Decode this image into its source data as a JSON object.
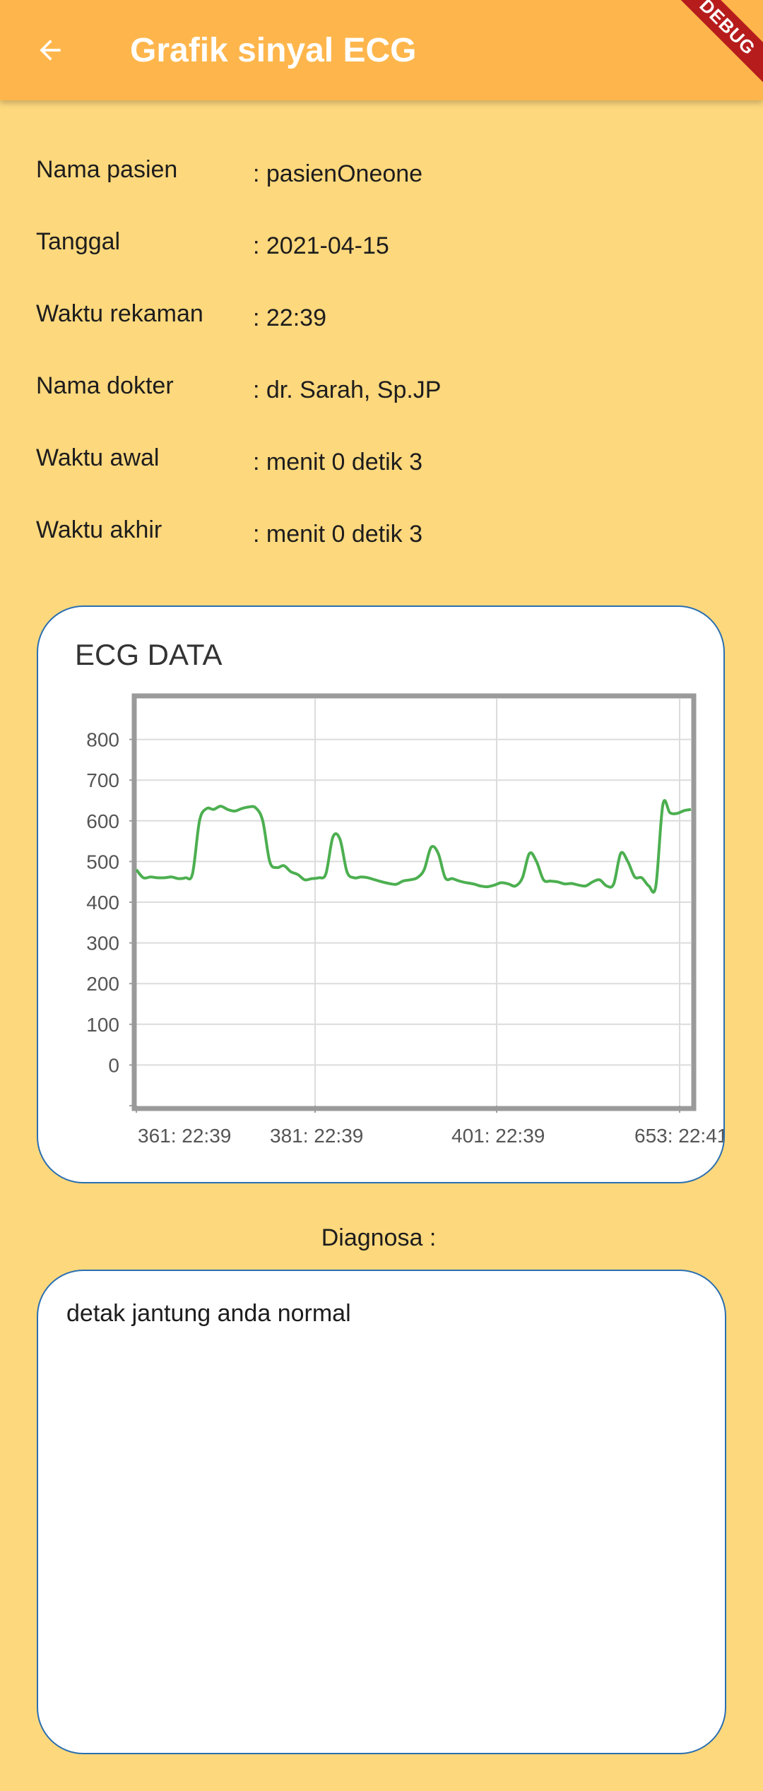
{
  "app_bar": {
    "title": "Grafik sinyal ECG",
    "back_icon": "arrow-back-icon",
    "debug_banner": "DEBUG",
    "background_color": "#FEB64C"
  },
  "patient_info": [
    {
      "label": "Nama pasien",
      "value": ": pasienOneone"
    },
    {
      "label": "Tanggal",
      "value": ": 2021-04-15"
    },
    {
      "label": "Waktu rekaman",
      "value": ": 22:39"
    },
    {
      "label": "Nama dokter",
      "value": ": dr. Sarah, Sp.JP"
    },
    {
      "label": "Waktu awal",
      "value": ": menit 0 detik 3"
    },
    {
      "label": "Waktu akhir",
      "value": ": menit 0 detik 3"
    }
  ],
  "chart_data": {
    "type": "line",
    "title": "ECG DATA",
    "xlabel": "",
    "ylabel": "",
    "ylim": [
      -100,
      900
    ],
    "y_ticks": [
      "800",
      "700",
      "600",
      "500",
      "400",
      "300",
      "200",
      "100",
      "0"
    ],
    "x_tick_labels": [
      "361: 22:39",
      "381: 22:39",
      "401: 22:39",
      "653: 22:41"
    ],
    "grid": true,
    "line_color": "#4CAF50",
    "series": [
      {
        "values": [
          480,
          460,
          462,
          460,
          460,
          462,
          458,
          460,
          470,
          600,
          630,
          628,
          636,
          628,
          624,
          630,
          634,
          632,
          600,
          500,
          485,
          490,
          475,
          468,
          455,
          458,
          460,
          470,
          560,
          555,
          475,
          460,
          462,
          460,
          455,
          450,
          446,
          444,
          452,
          455,
          460,
          480,
          535,
          520,
          460,
          458,
          452,
          448,
          445,
          440,
          438,
          442,
          448,
          445,
          440,
          460,
          520,
          500,
          455,
          452,
          450,
          445,
          446,
          442,
          440,
          450,
          455,
          440,
          445,
          520,
          500,
          462,
          460,
          440,
          440,
          640,
          620,
          618,
          625,
          628
        ]
      }
    ]
  },
  "diagnosis": {
    "label": "Diagnosa :",
    "text": "detak jantung anda normal"
  }
}
